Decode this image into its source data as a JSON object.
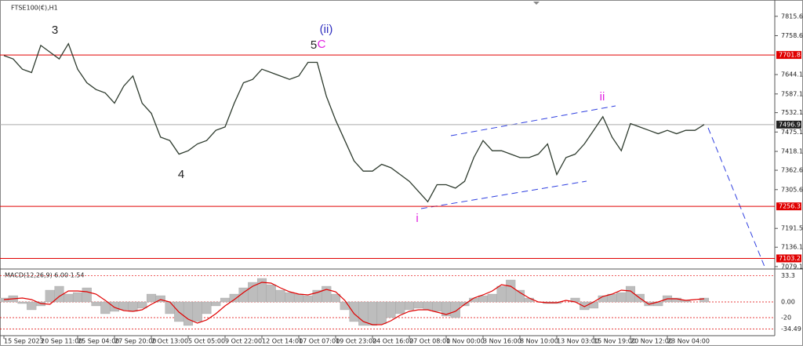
{
  "chart_data": [
    {
      "type": "line",
      "title": "FTSE100(€),H1",
      "color": "#2e3b2e",
      "categories": [
        "15 Sep 2023",
        null,
        null,
        null,
        "20 Sep 11:00",
        null,
        null,
        null,
        "25 Sep 04:00",
        null,
        null,
        null,
        "27 Sep 20:00",
        null,
        null,
        null,
        "2 Oct 13:00",
        null,
        null,
        null,
        "5 Oct 05:00",
        null,
        null,
        null,
        "9 Oct 22:00",
        null,
        null,
        null,
        "12 Oct 14:00",
        null,
        null,
        null,
        "17 Oct 07:00",
        null,
        null,
        null,
        "19 Oct 23:00",
        null,
        null,
        null,
        "24 Oct 16:00",
        null,
        null,
        null,
        "27 Oct 08:00",
        null,
        null,
        null,
        "1 Nov 00:00",
        null,
        null,
        null,
        "3 Nov 16:00",
        null,
        null,
        null,
        "8 Nov 10:00",
        null,
        null,
        null,
        "13 Nov 03:00",
        null,
        null,
        null,
        "15 Nov 19:00",
        null,
        null,
        null,
        "20 Nov 12:00",
        null,
        null,
        null,
        "23 Nov 04:00",
        null,
        null,
        null,
        null
      ],
      "values": [
        7700,
        7690,
        7660,
        7650,
        7730,
        7710,
        7690,
        7735,
        7660,
        7620,
        7600,
        7590,
        7560,
        7610,
        7640,
        7560,
        7530,
        7460,
        7450,
        7410,
        7420,
        7440,
        7450,
        7480,
        7490,
        7560,
        7620,
        7630,
        7660,
        7650,
        7640,
        7630,
        7640,
        7680,
        7680,
        7580,
        7510,
        7450,
        7390,
        7360,
        7360,
        7380,
        7370,
        7350,
        7330,
        7300,
        7270,
        7320,
        7320,
        7310,
        7330,
        7400,
        7450,
        7420,
        7420,
        7410,
        7400,
        7400,
        7410,
        7440,
        7350,
        7400,
        7410,
        7440,
        7480,
        7520,
        7460,
        7420,
        7500,
        7490,
        7480,
        7470,
        7480,
        7470,
        7480,
        7480,
        7497
      ],
      "ylim": [
        7072,
        7852
      ],
      "yticks": [
        7815.6,
        7758.6,
        7644.1,
        7587.1,
        7532.1,
        7475.1,
        7418.1,
        7362.6,
        7305.6,
        7191.5,
        7136.1,
        7079.1
      ],
      "levels": [
        7701.8,
        7256.3,
        7103.2
      ],
      "level_color": "#e00000",
      "current_price": 7496.9,
      "annotations": [
        {
          "text": "3",
          "color": "#222222"
        },
        {
          "text": "4",
          "color": "#222222"
        },
        {
          "text": "5",
          "color": "#222222"
        },
        {
          "text": "C",
          "color": "#e020e0"
        },
        {
          "text": "(ii)",
          "color": "#3030c0"
        },
        {
          "text": "i",
          "color": "#e020e0"
        },
        {
          "text": "ii",
          "color": "#e020e0"
        }
      ]
    },
    {
      "type": "macd",
      "title": "MACD(12,26,9) 6.00 1.54",
      "series": [
        {
          "color": "#bdbdbd",
          "values": [
            5,
            8,
            -2,
            -10,
            -5,
            15,
            20,
            10,
            12,
            18,
            -5,
            -15,
            -12,
            -10,
            -12,
            -8,
            10,
            8,
            -15,
            -25,
            -30,
            -25,
            -15,
            -5,
            5,
            10,
            18,
            25,
            30,
            22,
            15,
            12,
            10,
            8,
            15,
            20,
            10,
            -10,
            -25,
            -30,
            -30,
            -28,
            -20,
            -15,
            -10,
            -8,
            -10,
            -12,
            -18,
            -20,
            -5,
            5,
            8,
            10,
            20,
            28,
            15,
            5,
            0,
            -2,
            -2,
            0,
            5,
            -10,
            -8,
            8,
            10,
            12,
            20,
            10,
            -5,
            -5,
            8,
            5,
            2,
            0,
            5
          ]
        },
        {
          "color": "#e00000",
          "values": [
            3,
            4,
            5,
            3,
            -2,
            -3,
            7,
            14,
            14,
            13,
            10,
            2,
            -7,
            -11,
            -12,
            -10,
            -3,
            3,
            0,
            -13,
            -22,
            -27,
            -23,
            -15,
            -5,
            3,
            12,
            20,
            25,
            24,
            18,
            13,
            10,
            9,
            12,
            16,
            13,
            2,
            -15,
            -25,
            -29,
            -29,
            -24,
            -17,
            -12,
            -10,
            -10,
            -13,
            -16,
            -12,
            -3,
            5,
            9,
            14,
            22,
            20,
            12,
            5,
            0,
            -1,
            -1,
            2,
            0,
            -6,
            0,
            7,
            10,
            15,
            14,
            5,
            -3,
            0,
            4,
            4,
            2,
            3,
            4
          ]
        }
      ],
      "ylim": [
        -40,
        40
      ],
      "yticks": [
        33.3,
        {
          "value": 0,
          "label": "0.00"
        },
        {
          "value": -20,
          "label": "-20"
        },
        -34.49
      ]
    }
  ]
}
